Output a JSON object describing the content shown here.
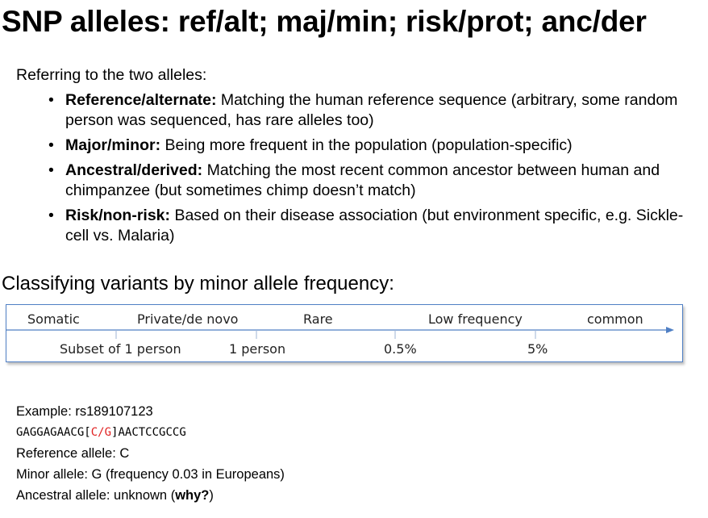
{
  "title": "SNP alleles: ref/alt; maj/min; risk/prot; anc/der",
  "intro": "Referring to the two alleles:",
  "bullets": [
    {
      "term": "Reference/alternate:",
      "text": " Matching the human reference sequence (arbitrary, some random person was sequenced, has rare alleles too)"
    },
    {
      "term": "Major/minor:",
      "text": " Being more frequent in the population (population-specific)"
    },
    {
      "term": "Ancestral/derived:",
      "text": " Matching the most recent common ancestor between human and chimpanzee (but sometimes chimp doesn’t match)"
    },
    {
      "term": "Risk/non-risk:",
      "text": " Based on their disease association (but environment specific, e.g. Sickle-cell vs. Malaria)"
    }
  ],
  "bullet_symbol": "•",
  "section_heading": "Classifying variants by minor allele frequency:",
  "scale": {
    "categories": [
      "Somatic",
      "Private/de novo",
      "Rare",
      "Low frequency",
      "common"
    ],
    "thresholds": [
      "Subset of 1 person",
      "1 person",
      "0.5%",
      "5%"
    ],
    "line_color": "#4f7fc4"
  },
  "example": {
    "line1": "Example: rs189107123",
    "seq_prefix": "GAGGAGAACG[",
    "seq_allele1": "C",
    "seq_sep": "/",
    "seq_allele2": "G",
    "seq_suffix": "]AACTCCGCCG",
    "reference": "Reference allele: C",
    "minor": "Minor allele: G (frequency 0.03 in Europeans)",
    "ancestral_prefix": "Ancestral allele: unknown (",
    "ancestral_bold": "why?",
    "ancestral_suffix": ")"
  }
}
